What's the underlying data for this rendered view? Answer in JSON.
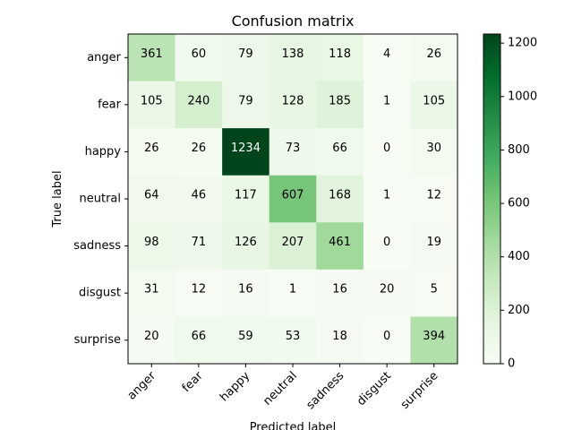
{
  "chart_data": {
    "type": "heatmap",
    "title": "Confusion matrix",
    "xlabel": "Predicted label",
    "ylabel": "True label",
    "x_labels": [
      "anger",
      "fear",
      "happy",
      "neutral",
      "sadness",
      "disgust",
      "surprise"
    ],
    "y_labels": [
      "anger",
      "fear",
      "happy",
      "neutral",
      "sadness",
      "disgust",
      "surprise"
    ],
    "matrix": [
      [
        361,
        60,
        79,
        138,
        118,
        4,
        26
      ],
      [
        105,
        240,
        79,
        128,
        185,
        1,
        105
      ],
      [
        26,
        26,
        1234,
        73,
        66,
        0,
        30
      ],
      [
        64,
        46,
        117,
        607,
        168,
        1,
        12
      ],
      [
        98,
        71,
        126,
        207,
        461,
        0,
        19
      ],
      [
        31,
        12,
        16,
        1,
        16,
        20,
        5
      ],
      [
        20,
        66,
        59,
        53,
        18,
        0,
        394
      ]
    ],
    "colormap": "Greens",
    "colorbar": {
      "min": 0,
      "max": 1234,
      "ticks": [
        0,
        200,
        400,
        600,
        800,
        1000,
        1200
      ]
    },
    "grid": false
  }
}
